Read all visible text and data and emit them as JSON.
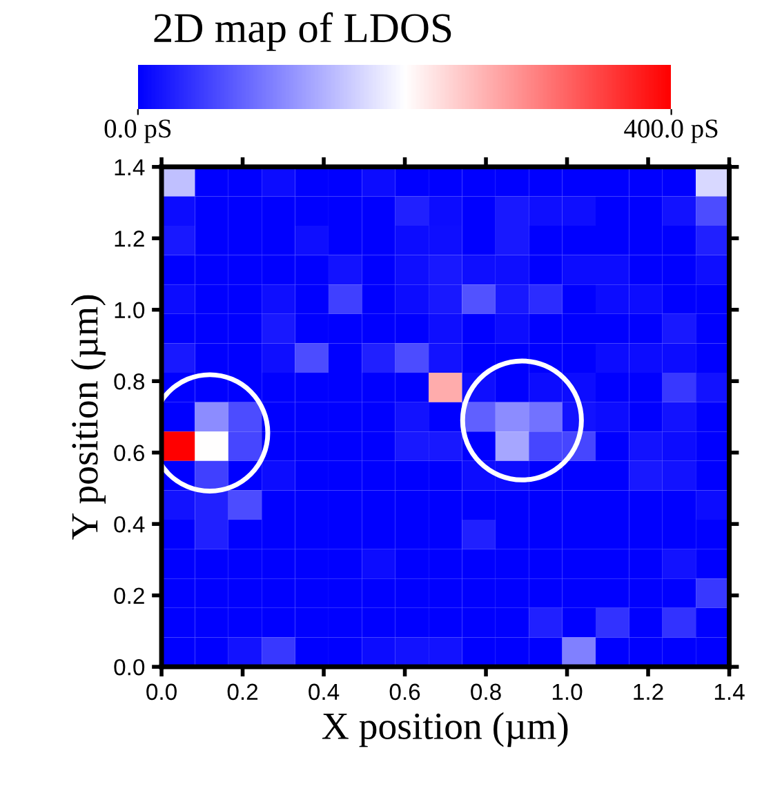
{
  "chart_data": {
    "type": "heatmap",
    "title": "2D map of LDOS",
    "xlabel": "X position (µm)",
    "ylabel": "Y position (µm)",
    "xlim": [
      0,
      1.4
    ],
    "ylim": [
      0,
      1.4
    ],
    "xticks": [
      {
        "value": 0,
        "label": "0.0"
      },
      {
        "value": 0.2,
        "label": "0.2"
      },
      {
        "value": 0.4,
        "label": "0.4"
      },
      {
        "value": 0.6,
        "label": "0.6"
      },
      {
        "value": 0.8,
        "label": "0.8"
      },
      {
        "value": 1.0,
        "label": "1.0"
      },
      {
        "value": 1.2,
        "label": "1.2"
      },
      {
        "value": 1.4,
        "label": "1.4"
      }
    ],
    "yticks": [
      {
        "value": 0,
        "label": "0.0"
      },
      {
        "value": 0.2,
        "label": "0.2"
      },
      {
        "value": 0.4,
        "label": "0.4"
      },
      {
        "value": 0.6,
        "label": "0.6"
      },
      {
        "value": 0.8,
        "label": "0.8"
      },
      {
        "value": 1.0,
        "label": "1.0"
      },
      {
        "value": 1.2,
        "label": "1.2"
      },
      {
        "value": 1.4,
        "label": "1.4"
      }
    ],
    "clim": [
      0,
      400
    ],
    "cticks": [
      {
        "value": 0,
        "label": "0.0 pS"
      },
      {
        "value": 400,
        "label": "400.0 pS"
      }
    ],
    "cells": [
      [
        150,
        0,
        0,
        10,
        0,
        0,
        10,
        0,
        0,
        0,
        0,
        0,
        0,
        0,
        0,
        0,
        170
      ],
      [
        10,
        0,
        0,
        0,
        0,
        0,
        0,
        25,
        10,
        0,
        20,
        12,
        12,
        0,
        0,
        15,
        60
      ],
      [
        20,
        0,
        0,
        0,
        12,
        0,
        0,
        10,
        12,
        0,
        20,
        0,
        0,
        0,
        0,
        0,
        25
      ],
      [
        0,
        0,
        0,
        0,
        0,
        15,
        0,
        12,
        20,
        12,
        12,
        0,
        10,
        10,
        0,
        0,
        12
      ],
      [
        10,
        0,
        0,
        12,
        0,
        50,
        0,
        10,
        20,
        65,
        20,
        35,
        0,
        10,
        10,
        0,
        0
      ],
      [
        0,
        0,
        0,
        20,
        0,
        0,
        0,
        0,
        12,
        0,
        10,
        0,
        0,
        0,
        0,
        20,
        0
      ],
      [
        20,
        0,
        0,
        12,
        60,
        0,
        25,
        60,
        15,
        0,
        0,
        0,
        0,
        10,
        10,
        10,
        0
      ],
      [
        0,
        0,
        0,
        0,
        0,
        0,
        0,
        0,
        265,
        12,
        0,
        10,
        10,
        0,
        0,
        45,
        15
      ],
      [
        0,
        110,
        60,
        0,
        0,
        0,
        0,
        15,
        0,
        75,
        110,
        90,
        15,
        10,
        0,
        15,
        0
      ],
      [
        400,
        200,
        55,
        0,
        0,
        0,
        0,
        20,
        20,
        0,
        130,
        55,
        55,
        0,
        15,
        10,
        0
      ],
      [
        0,
        50,
        0,
        10,
        0,
        0,
        0,
        0,
        0,
        10,
        10,
        0,
        0,
        0,
        20,
        15,
        0
      ],
      [
        15,
        25,
        60,
        0,
        0,
        0,
        0,
        0,
        0,
        0,
        0,
        0,
        0,
        0,
        0,
        0,
        10
      ],
      [
        0,
        25,
        0,
        0,
        0,
        0,
        0,
        0,
        0,
        25,
        0,
        0,
        0,
        0,
        0,
        0,
        0
      ],
      [
        0,
        0,
        0,
        0,
        0,
        0,
        10,
        0,
        0,
        0,
        0,
        0,
        0,
        0,
        0,
        15,
        0
      ],
      [
        0,
        0,
        0,
        0,
        0,
        0,
        0,
        0,
        0,
        0,
        0,
        0,
        0,
        0,
        0,
        0,
        45
      ],
      [
        0,
        0,
        0,
        0,
        0,
        0,
        0,
        0,
        0,
        0,
        0,
        25,
        0,
        40,
        0,
        40,
        0
      ],
      [
        0,
        0,
        15,
        45,
        0,
        0,
        10,
        15,
        15,
        0,
        0,
        0,
        100,
        0,
        0,
        0,
        0
      ]
    ]
  }
}
